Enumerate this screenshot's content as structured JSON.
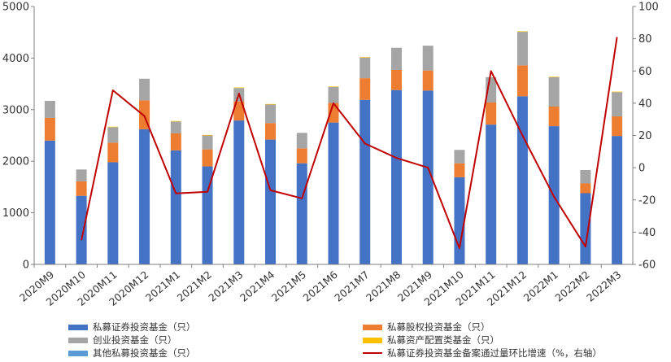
{
  "chart_data": {
    "type": "bar",
    "stacked": true,
    "categories": [
      "2020M9",
      "2020M10",
      "2020M11",
      "2020M12",
      "2021M1",
      "2021M2",
      "2021M3",
      "2021M4",
      "2021M5",
      "2021M6",
      "2021M7",
      "2021M8",
      "2021M9",
      "2021M10",
      "2021M11",
      "2021M12",
      "2022M1",
      "2022M2",
      "2022M3"
    ],
    "ylim": [
      0,
      5000
    ],
    "yticks": [
      0,
      1000,
      2000,
      3000,
      4000,
      5000
    ],
    "y2lim": [
      -60,
      100
    ],
    "y2ticks": [
      -60,
      -40,
      -20,
      0,
      20,
      40,
      60,
      80,
      100
    ],
    "grid": false,
    "legend_position": "bottom",
    "series": [
      {
        "name": "私募证券投资基金（只）",
        "color": "#4472c4",
        "axis": "left",
        "values": [
          2400,
          1330,
          1980,
          2620,
          2210,
          1900,
          2790,
          2420,
          1960,
          2750,
          3190,
          3380,
          3370,
          1690,
          2710,
          3260,
          2680,
          1380,
          2490
        ]
      },
      {
        "name": "私募股权投资基金（只）",
        "color": "#ed7d31",
        "axis": "left",
        "values": [
          440,
          280,
          380,
          560,
          330,
          330,
          370,
          320,
          290,
          380,
          420,
          390,
          390,
          270,
          430,
          600,
          380,
          190,
          380
        ]
      },
      {
        "name": "创业投资基金（只）",
        "color": "#a5a5a5",
        "axis": "left",
        "values": [
          330,
          230,
          300,
          420,
          230,
          270,
          260,
          360,
          300,
          310,
          400,
          430,
          480,
          260,
          490,
          650,
          570,
          260,
          470
        ]
      },
      {
        "name": "私募资产配置类基金（只）",
        "color": "#ffc000",
        "axis": "left",
        "values": [
          0,
          0,
          10,
          0,
          10,
          10,
          10,
          10,
          0,
          10,
          10,
          0,
          0,
          0,
          0,
          10,
          10,
          0,
          10
        ]
      },
      {
        "name": "其他私募投资基金（只）",
        "color": "#5b9bd5",
        "axis": "left",
        "values": [
          0,
          0,
          0,
          0,
          0,
          0,
          0,
          0,
          0,
          0,
          0,
          0,
          0,
          0,
          0,
          0,
          0,
          0,
          0
        ]
      },
      {
        "name": "私募证券投资基金备案通过量环比增速（%，右轴）",
        "color": "#c00000",
        "axis": "right",
        "type": "line",
        "values": [
          null,
          -45,
          48,
          32,
          -16,
          -15,
          46,
          -14,
          -19,
          40,
          15,
          6,
          0,
          -50,
          60,
          20,
          -18,
          -49,
          81
        ]
      }
    ]
  }
}
